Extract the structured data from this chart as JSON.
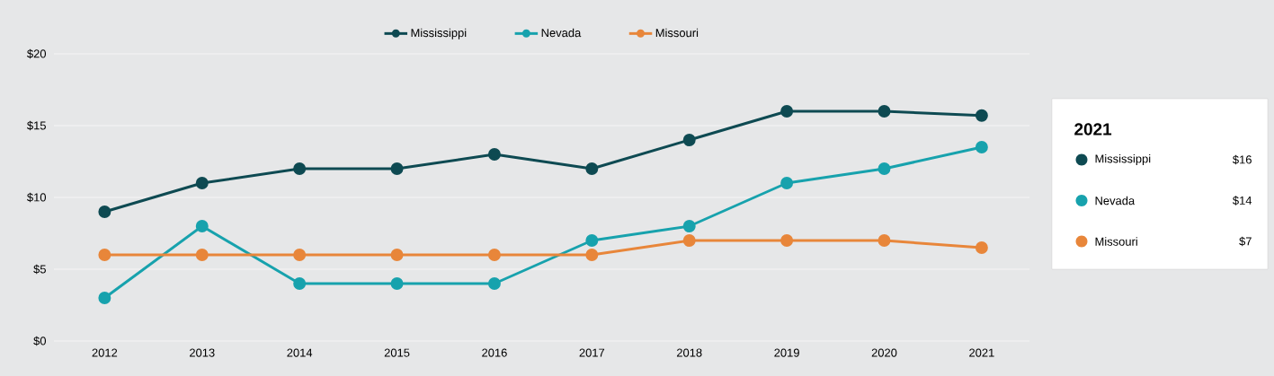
{
  "chart_data": {
    "type": "line",
    "categories": [
      "2012",
      "2013",
      "2014",
      "2015",
      "2016",
      "2017",
      "2018",
      "2019",
      "2020",
      "2021"
    ],
    "series": [
      {
        "name": "Mississippi",
        "color": "#0e4a52",
        "values": [
          9,
          11,
          12,
          12,
          13,
          12,
          14,
          16,
          16,
          15.7
        ]
      },
      {
        "name": "Nevada",
        "color": "#17a2ad",
        "values": [
          3,
          8,
          4,
          4,
          4,
          7,
          8,
          11,
          12,
          13.5
        ]
      },
      {
        "name": "Missouri",
        "color": "#e8863a",
        "values": [
          6,
          6,
          6,
          6,
          6,
          6,
          7,
          7,
          7,
          6.5
        ]
      }
    ],
    "ylim": [
      0,
      20
    ],
    "yticks": [
      {
        "value": 0,
        "label": "$0"
      },
      {
        "value": 5,
        "label": "$5"
      },
      {
        "value": 10,
        "label": "$10"
      },
      {
        "value": 15,
        "label": "$15"
      },
      {
        "value": 20,
        "label": "$20"
      }
    ],
    "grid": "y",
    "legend": "top",
    "marker": "circle",
    "line_style": "solid",
    "annotations": [
      "2021",
      "$16",
      "$14",
      "$7"
    ]
  }
}
